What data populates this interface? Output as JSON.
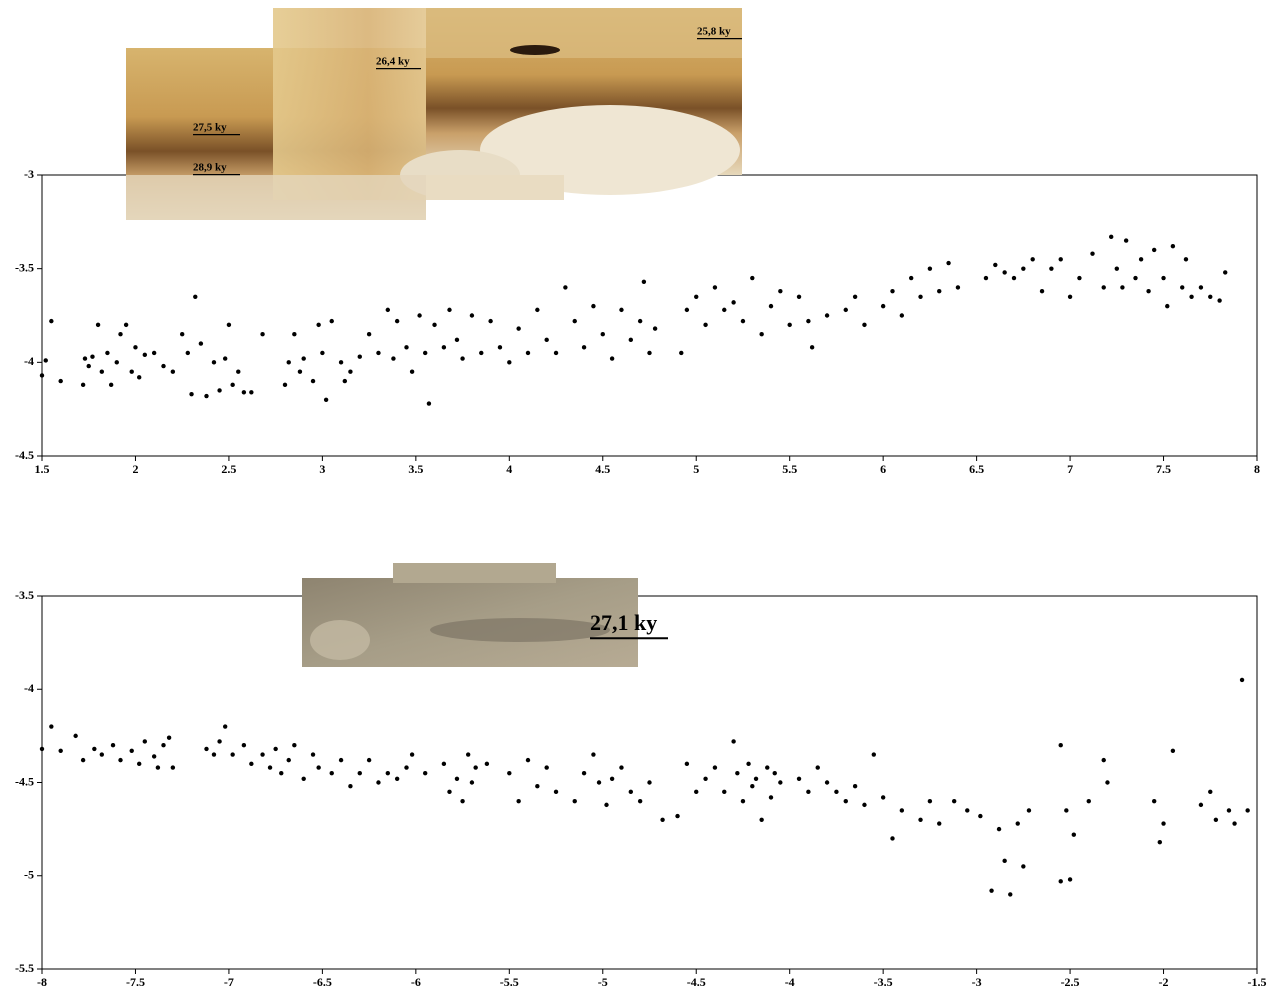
{
  "chart_data": [
    {
      "type": "scatter",
      "color": "#000000",
      "annotations": [
        "25,8 ky",
        "26,4 ky",
        "27,5 ky",
        "28,9 ky"
      ],
      "xlim": [
        1.5,
        8
      ],
      "ylim": [
        -4.5,
        -3
      ],
      "xticks": [
        1.5,
        2,
        2.5,
        3,
        3.5,
        4,
        4.5,
        5,
        5.5,
        6,
        6.5,
        7,
        7.5,
        8
      ],
      "yticks": [
        -3,
        -3.5,
        -4,
        -4.5
      ],
      "x": [
        1.5,
        1.52,
        1.55,
        1.6,
        1.72,
        1.73,
        1.75,
        1.77,
        1.8,
        1.82,
        1.85,
        1.87,
        1.9,
        1.92,
        1.95,
        1.98,
        2.0,
        2.02,
        2.05,
        2.1,
        2.15,
        2.2,
        2.25,
        2.28,
        2.3,
        2.32,
        2.35,
        2.38,
        2.42,
        2.45,
        2.48,
        2.5,
        2.52,
        2.55,
        2.58,
        2.62,
        2.68,
        2.8,
        2.82,
        2.85,
        2.88,
        2.9,
        2.95,
        2.98,
        3.0,
        3.02,
        3.05,
        3.1,
        3.12,
        3.15,
        3.2,
        3.25,
        3.3,
        3.35,
        3.38,
        3.4,
        3.45,
        3.48,
        3.52,
        3.55,
        3.57,
        3.6,
        3.65,
        3.68,
        3.72,
        3.75,
        3.8,
        3.85,
        3.9,
        3.95,
        4.0,
        4.05,
        4.1,
        4.15,
        4.2,
        4.25,
        4.3,
        4.35,
        4.4,
        4.45,
        4.5,
        4.55,
        4.6,
        4.65,
        4.7,
        4.72,
        4.75,
        4.78,
        4.92,
        4.95,
        5.0,
        5.05,
        5.1,
        5.15,
        5.2,
        5.25,
        5.3,
        5.35,
        5.4,
        5.45,
        5.5,
        5.55,
        5.6,
        5.62,
        5.7,
        5.8,
        5.85,
        5.9,
        6.0,
        6.05,
        6.1,
        6.15,
        6.2,
        6.25,
        6.3,
        6.35,
        6.4,
        6.55,
        6.6,
        6.65,
        6.7,
        6.75,
        6.8,
        6.85,
        6.9,
        6.95,
        7.0,
        7.05,
        7.12,
        7.18,
        7.22,
        7.25,
        7.28,
        7.3,
        7.35,
        7.38,
        7.42,
        7.45,
        7.5,
        7.52,
        7.55,
        7.6,
        7.62,
        7.65,
        7.7,
        7.75,
        7.8,
        7.83
      ],
      "values": [
        -4.07,
        -3.99,
        -3.78,
        -4.1,
        -4.12,
        -3.98,
        -4.02,
        -3.97,
        -3.8,
        -4.05,
        -3.95,
        -4.12,
        -4.0,
        -3.85,
        -3.8,
        -4.05,
        -3.92,
        -4.08,
        -3.96,
        -3.95,
        -4.02,
        -4.05,
        -3.85,
        -3.95,
        -4.17,
        -3.65,
        -3.9,
        -4.18,
        -4.0,
        -4.15,
        -3.98,
        -3.8,
        -4.12,
        -4.05,
        -4.16,
        -4.16,
        -3.85,
        -4.12,
        -4.0,
        -3.85,
        -4.05,
        -3.98,
        -4.1,
        -3.8,
        -3.95,
        -4.2,
        -3.78,
        -4.0,
        -4.1,
        -4.05,
        -3.97,
        -3.85,
        -3.95,
        -3.72,
        -3.98,
        -3.78,
        -3.92,
        -4.05,
        -3.75,
        -3.95,
        -4.22,
        -3.8,
        -3.92,
        -3.72,
        -3.88,
        -3.98,
        -3.75,
        -3.95,
        -3.78,
        -3.92,
        -4.0,
        -3.82,
        -3.95,
        -3.72,
        -3.88,
        -3.95,
        -3.6,
        -3.78,
        -3.92,
        -3.7,
        -3.85,
        -3.98,
        -3.72,
        -3.88,
        -3.78,
        -3.57,
        -3.95,
        -3.82,
        -3.95,
        -3.72,
        -3.65,
        -3.8,
        -3.6,
        -3.72,
        -3.68,
        -3.78,
        -3.55,
        -3.85,
        -3.7,
        -3.62,
        -3.8,
        -3.65,
        -3.78,
        -3.92,
        -3.75,
        -3.72,
        -3.65,
        -3.8,
        -3.7,
        -3.62,
        -3.75,
        -3.55,
        -3.65,
        -3.5,
        -3.62,
        -3.47,
        -3.6,
        -3.55,
        -3.48,
        -3.52,
        -3.55,
        -3.5,
        -3.45,
        -3.62,
        -3.5,
        -3.45,
        -3.65,
        -3.55,
        -3.42,
        -3.6,
        -3.33,
        -3.5,
        -3.6,
        -3.35,
        -3.55,
        -3.45,
        -3.62,
        -3.4,
        -3.55,
        -3.7,
        -3.38,
        -3.6,
        -3.45,
        -3.65,
        -3.6,
        -3.65,
        -3.67,
        -3.52
      ]
    },
    {
      "type": "scatter",
      "color": "#000000",
      "annotations": [
        "27,1 ky"
      ],
      "xlim": [
        -8,
        -1.5
      ],
      "ylim": [
        -5.5,
        -3.5
      ],
      "xticks": [
        -8,
        -7.5,
        -7,
        -6.5,
        -6,
        -5.5,
        -5,
        -4.5,
        -4,
        -3.5,
        -3,
        -2.5,
        -2,
        -1.5
      ],
      "yticks": [
        -3.5,
        -4,
        -4.5,
        -5,
        -5.5
      ],
      "x": [
        -8,
        -7.95,
        -7.9,
        -7.82,
        -7.78,
        -7.72,
        -7.68,
        -7.62,
        -7.58,
        -7.52,
        -7.48,
        -7.45,
        -7.4,
        -7.38,
        -7.35,
        -7.32,
        -7.3,
        -7.12,
        -7.08,
        -7.05,
        -7.02,
        -6.98,
        -6.92,
        -6.88,
        -6.82,
        -6.78,
        -6.75,
        -6.72,
        -6.68,
        -6.65,
        -6.6,
        -6.55,
        -6.52,
        -6.45,
        -6.4,
        -6.35,
        -6.3,
        -6.25,
        -6.2,
        -6.15,
        -6.1,
        -6.05,
        -6.02,
        -5.95,
        -5.85,
        -5.82,
        -5.78,
        -5.75,
        -5.72,
        -5.7,
        -5.68,
        -5.62,
        -5.5,
        -5.45,
        -5.4,
        -5.35,
        -5.3,
        -5.25,
        -5.15,
        -5.1,
        -5.05,
        -5.02,
        -4.98,
        -4.95,
        -4.9,
        -4.85,
        -4.8,
        -4.75,
        -4.68,
        -4.6,
        -4.55,
        -4.5,
        -4.45,
        -4.4,
        -4.35,
        -4.3,
        -4.28,
        -4.25,
        -4.22,
        -4.2,
        -4.18,
        -4.15,
        -4.12,
        -4.1,
        -4.08,
        -4.05,
        -3.95,
        -3.9,
        -3.85,
        -3.8,
        -3.75,
        -3.7,
        -3.65,
        -3.6,
        -3.55,
        -3.5,
        -3.45,
        -3.4,
        -3.3,
        -3.25,
        -3.2,
        -3.12,
        -3.05,
        -2.98,
        -2.92,
        -2.88,
        -2.85,
        -2.82,
        -2.78,
        -2.75,
        -2.72,
        -2.55,
        -2.55,
        -2.52,
        -2.5,
        -2.48,
        -2.4,
        -2.32,
        -2.3,
        -2.05,
        -2.02,
        -2.0,
        -1.95,
        -1.8,
        -1.75,
        -1.72,
        -1.65,
        -1.62,
        -1.58,
        -1.55
      ],
      "values": [
        -4.32,
        -4.2,
        -4.33,
        -4.25,
        -4.38,
        -4.32,
        -4.35,
        -4.3,
        -4.38,
        -4.33,
        -4.4,
        -4.28,
        -4.36,
        -4.42,
        -4.3,
        -4.26,
        -4.42,
        -4.32,
        -4.35,
        -4.28,
        -4.2,
        -4.35,
        -4.3,
        -4.4,
        -4.35,
        -4.42,
        -4.32,
        -4.45,
        -4.38,
        -4.3,
        -4.48,
        -4.35,
        -4.42,
        -4.45,
        -4.38,
        -4.52,
        -4.45,
        -4.38,
        -4.5,
        -4.45,
        -4.48,
        -4.42,
        -4.35,
        -4.45,
        -4.4,
        -4.55,
        -4.48,
        -4.6,
        -4.35,
        -4.5,
        -4.42,
        -4.4,
        -4.45,
        -4.6,
        -4.38,
        -4.52,
        -4.42,
        -4.55,
        -4.6,
        -4.45,
        -4.35,
        -4.5,
        -4.62,
        -4.48,
        -4.42,
        -4.55,
        -4.6,
        -4.5,
        -4.7,
        -4.68,
        -4.4,
        -4.55,
        -4.48,
        -4.42,
        -4.55,
        -4.28,
        -4.45,
        -4.6,
        -4.4,
        -4.52,
        -4.48,
        -4.7,
        -4.42,
        -4.58,
        -4.45,
        -4.5,
        -4.48,
        -4.55,
        -4.42,
        -4.5,
        -4.55,
        -4.6,
        -4.52,
        -4.62,
        -4.35,
        -4.58,
        -4.8,
        -4.65,
        -4.7,
        -4.6,
        -4.72,
        -4.6,
        -4.65,
        -4.68,
        -5.08,
        -4.75,
        -4.92,
        -5.1,
        -4.72,
        -4.95,
        -4.65,
        -4.3,
        -5.03,
        -4.65,
        -5.02,
        -4.78,
        -4.6,
        -4.38,
        -4.5,
        -4.6,
        -4.82,
        -4.72,
        -4.33,
        -4.62,
        -4.55,
        -4.7,
        -4.65,
        -4.72,
        -3.95,
        -4.65
      ]
    }
  ]
}
